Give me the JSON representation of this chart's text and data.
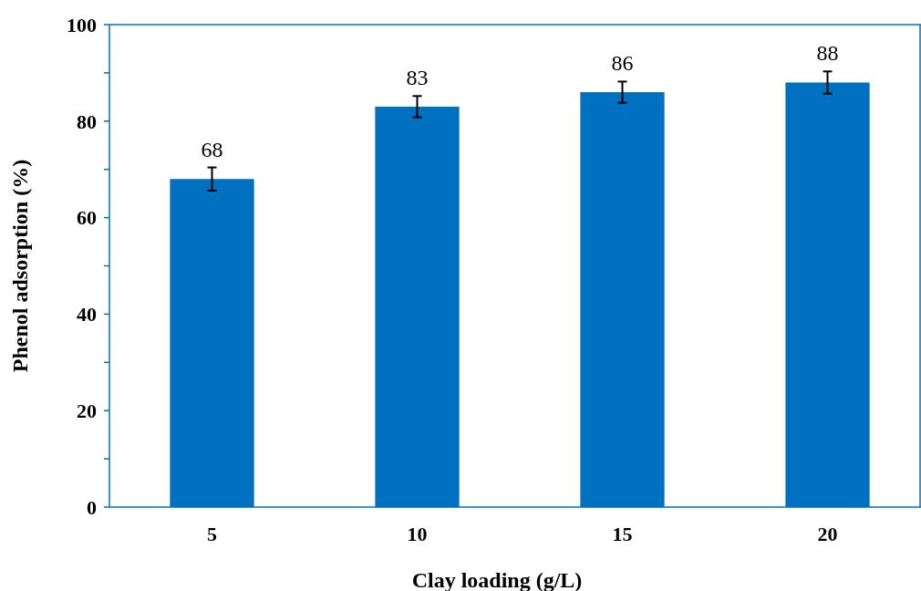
{
  "chart_data": {
    "type": "bar",
    "xlabel": "Clay loading (g/L)",
    "ylabel": "Phenol adsorption (%)",
    "categories": [
      "5",
      "10",
      "15",
      "20"
    ],
    "values": [
      68,
      83,
      86,
      88
    ],
    "errors": [
      2.4,
      2.2,
      2.2,
      2.3
    ],
    "color": "#0070c0",
    "data_labels": true,
    "ylim": [
      0,
      100
    ],
    "yticks": [
      0,
      {
        "value": 10,
        "label": null
      },
      20,
      {
        "value": 30,
        "label": null
      },
      40,
      {
        "value": 50,
        "label": null
      },
      60,
      {
        "value": 70,
        "label": null
      },
      80,
      {
        "value": 90,
        "label": null
      },
      100
    ],
    "grid": false
  }
}
